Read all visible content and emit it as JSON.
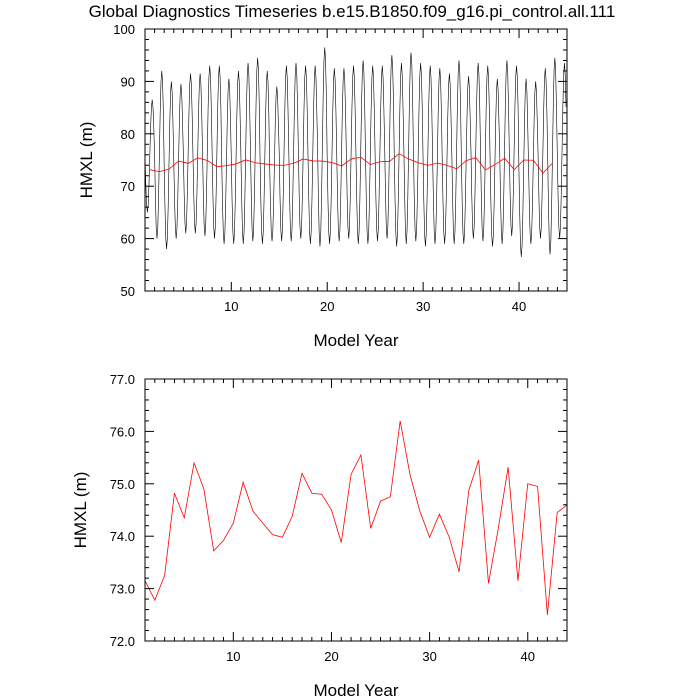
{
  "figure_title": "Global Diagnostics Timeseries b.e15.B1850.f09_g16.pi_control.all.111",
  "colors": {
    "monthly_line": "#000000",
    "annual_line": "#ff0000"
  },
  "chart_data": [
    {
      "type": "line",
      "title": "Global Diagnostics Timeseries b.e15.B1850.f09_g16.pi_control.all.111",
      "xlabel": "Model Year",
      "ylabel": "HMXL (m)",
      "xlim": [
        1,
        45
      ],
      "ylim": [
        50,
        100
      ],
      "xticks": [
        10,
        20,
        30,
        40
      ],
      "yticks": [
        50,
        60,
        70,
        80,
        90,
        100
      ],
      "ytick_labels": [
        "50",
        "60",
        "70",
        "80",
        "90",
        "100"
      ],
      "grid": false,
      "series": [
        {
          "color": "#000000",
          "style": "monthly",
          "x_start": 1.0,
          "x_step": 0.0833,
          "peaks": [
            86.5,
            92.0,
            90.0,
            89.5,
            91.5,
            91.5,
            93.0,
            93.0,
            90.5,
            92.0,
            93.5,
            94.5,
            92.0,
            89.0,
            93.0,
            93.5,
            93.0,
            93.0,
            96.5,
            92.5,
            92.5,
            93.0,
            94.0,
            93.0,
            93.0,
            95.0,
            93.5,
            95.5,
            93.5,
            93.0,
            92.5,
            91.5,
            94.0,
            91.0,
            93.5,
            93.0,
            90.5,
            94.0,
            93.0,
            90.5,
            90.0,
            92.5,
            94.5,
            93.5
          ],
          "troughs": [
            65.0,
            60.0,
            58.0,
            60.0,
            61.0,
            61.0,
            60.5,
            60.0,
            59.0,
            59.0,
            59.0,
            59.5,
            59.0,
            59.5,
            59.5,
            59.5,
            60.0,
            59.0,
            58.5,
            59.0,
            59.5,
            60.0,
            59.0,
            59.0,
            59.5,
            60.0,
            58.5,
            59.0,
            59.5,
            58.5,
            59.0,
            59.0,
            59.0,
            59.0,
            60.0,
            59.5,
            58.5,
            59.0,
            60.5,
            56.5,
            59.0,
            60.0,
            57.0,
            60.0
          ]
        },
        {
          "color": "#ff0000",
          "style": "annual",
          "x": [
            1.5,
            2.5,
            3.5,
            4.5,
            5.5,
            6.5,
            7.5,
            8.5,
            9.5,
            10.5,
            11.5,
            12.5,
            13.5,
            14.5,
            15.5,
            16.5,
            17.5,
            18.5,
            19.5,
            20.5,
            21.5,
            22.5,
            23.5,
            24.5,
            25.5,
            26.5,
            27.5,
            28.5,
            29.5,
            30.5,
            31.5,
            32.5,
            33.5,
            34.5,
            35.5,
            36.5,
            37.5,
            38.5,
            39.5,
            40.5,
            41.5,
            42.5,
            43.5
          ],
          "values": [
            73.15,
            72.78,
            73.25,
            74.82,
            74.35,
            75.4,
            74.9,
            73.72,
            73.92,
            74.25,
            75.03,
            74.48,
            74.25,
            74.03,
            73.98,
            74.38,
            75.2,
            74.82,
            74.8,
            74.5,
            73.88,
            75.18,
            75.55,
            74.15,
            74.67,
            74.75,
            76.2,
            75.18,
            74.48,
            73.98,
            74.42,
            73.98,
            73.32,
            74.88,
            75.45,
            73.1,
            74.15,
            75.32,
            73.15,
            75.0,
            74.95,
            72.5,
            74.45
          ]
        }
      ]
    },
    {
      "type": "line",
      "title": "",
      "xlabel": "Model Year",
      "ylabel": "HMXL (m)",
      "xlim": [
        1,
        44
      ],
      "ylim": [
        72,
        77
      ],
      "xticks": [
        10,
        20,
        30,
        40
      ],
      "yticks": [
        72,
        73,
        74,
        75,
        76,
        77
      ],
      "ytick_labels": [
        "72.0",
        "73.0",
        "74.0",
        "75.0",
        "76.0",
        "77.0"
      ],
      "grid": false,
      "series": [
        {
          "color": "#ff0000",
          "style": "annual",
          "x": [
            1,
            2,
            3,
            4,
            5,
            6,
            7,
            8,
            9,
            10,
            11,
            12,
            13,
            14,
            15,
            16,
            17,
            18,
            19,
            20,
            21,
            22,
            23,
            24,
            25,
            26,
            27,
            28,
            29,
            30,
            31,
            32,
            33,
            34,
            35,
            36,
            37,
            38,
            39,
            40,
            41,
            42,
            43,
            44
          ],
          "values": [
            73.15,
            72.78,
            73.25,
            74.82,
            74.35,
            75.4,
            74.9,
            73.72,
            73.92,
            74.25,
            75.03,
            74.48,
            74.25,
            74.03,
            73.98,
            74.38,
            75.2,
            74.82,
            74.8,
            74.5,
            73.88,
            75.18,
            75.55,
            74.15,
            74.67,
            74.75,
            76.2,
            75.18,
            74.48,
            73.98,
            74.42,
            73.98,
            73.32,
            74.88,
            75.45,
            73.1,
            74.15,
            75.32,
            73.15,
            75.0,
            74.95,
            72.5,
            74.45,
            74.6
          ]
        }
      ]
    }
  ]
}
